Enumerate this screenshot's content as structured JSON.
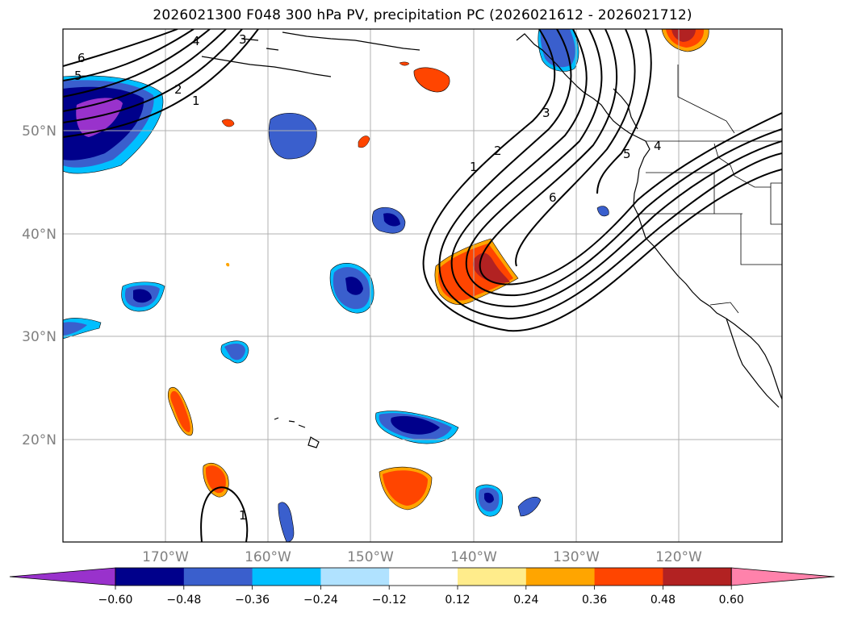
{
  "title": "2026021300 F048 300 hPa PV, precipitation PC (2026021612 - 2026021712)",
  "lat_labels": [
    "50°N",
    "40°N",
    "30°N",
    "20°N"
  ],
  "lon_labels": [
    "170°W",
    "160°W",
    "150°W",
    "140°W",
    "130°W",
    "120°W"
  ],
  "colorbar": {
    "ticks": [
      "−0.60",
      "−0.48",
      "−0.36",
      "−0.24",
      "−0.12",
      "0.12",
      "0.24",
      "0.36",
      "0.48",
      "0.60"
    ],
    "colors": [
      "#9932cc",
      "#00008b",
      "#3a5fcd",
      "#00bfff",
      "#b0e2ff",
      "#ffffff",
      "#ffec8b",
      "#ffa500",
      "#ff4500",
      "#b22222",
      "#ff82ab"
    ]
  },
  "pv_contour_labels": [
    "6",
    "5",
    "4",
    "3",
    "2",
    "1",
    "1",
    "2",
    "3",
    "6",
    "4",
    "5",
    "1"
  ]
}
